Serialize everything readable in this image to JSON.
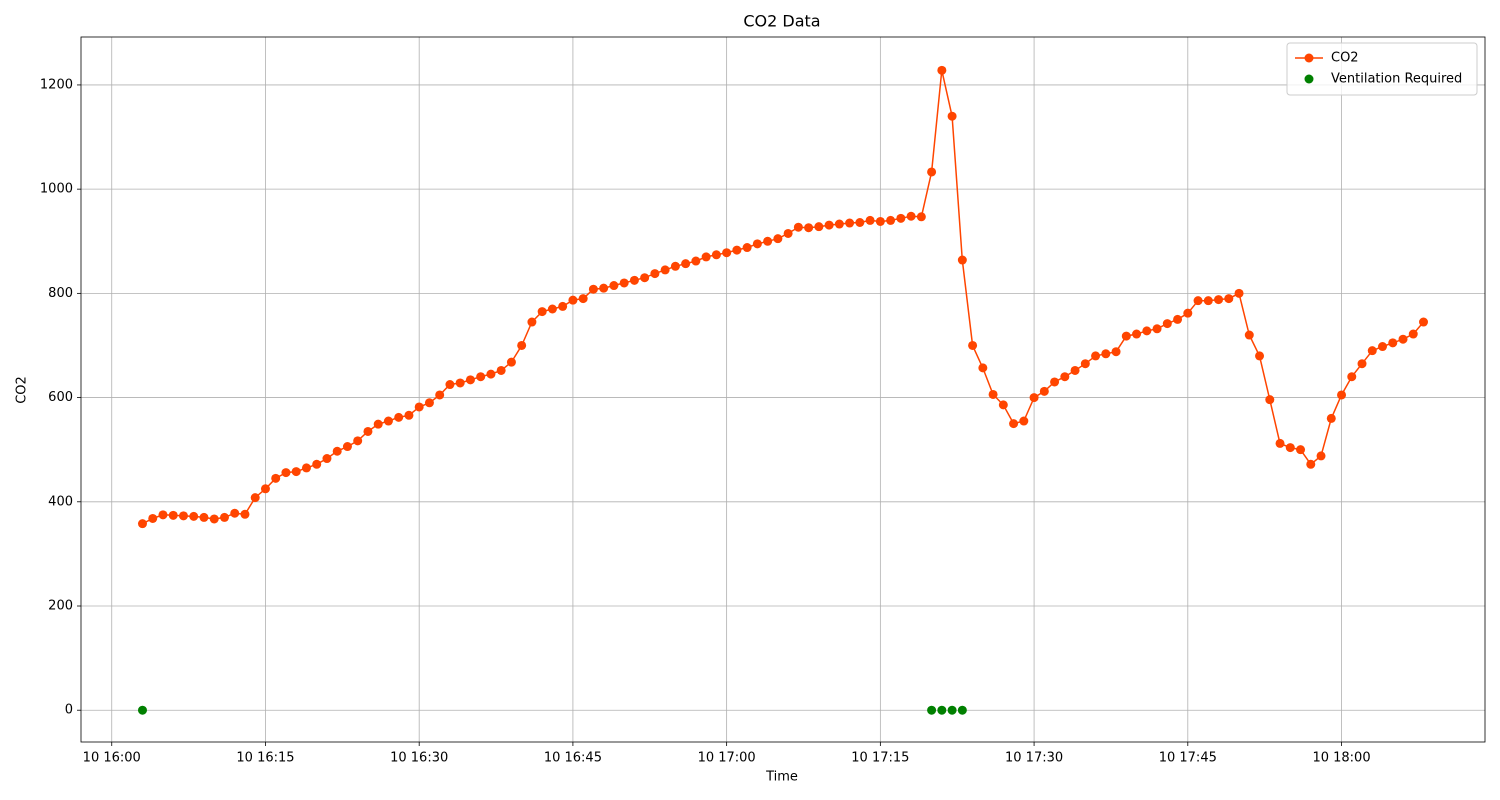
{
  "chart_data": {
    "type": "line",
    "title": "CO2 Data",
    "x_label": "Time",
    "y_label": "CO2",
    "x": [
      "10 16:03",
      "10 16:04",
      "10 16:05",
      "10 16:06",
      "10 16:07",
      "10 16:08",
      "10 16:09",
      "10 16:10",
      "10 16:11",
      "10 16:12",
      "10 16:13",
      "10 16:14",
      "10 16:15",
      "10 16:16",
      "10 16:17",
      "10 16:18",
      "10 16:19",
      "10 16:20",
      "10 16:21",
      "10 16:22",
      "10 16:23",
      "10 16:24",
      "10 16:25",
      "10 16:26",
      "10 16:27",
      "10 16:28",
      "10 16:29",
      "10 16:30",
      "10 16:31",
      "10 16:32",
      "10 16:33",
      "10 16:34",
      "10 16:35",
      "10 16:36",
      "10 16:37",
      "10 16:38",
      "10 16:39",
      "10 16:40",
      "10 16:41",
      "10 16:42",
      "10 16:43",
      "10 16:44",
      "10 16:45",
      "10 16:46",
      "10 16:47",
      "10 16:48",
      "10 16:49",
      "10 16:50",
      "10 16:51",
      "10 16:52",
      "10 16:53",
      "10 16:54",
      "10 16:55",
      "10 16:56",
      "10 16:57",
      "10 16:58",
      "10 16:59",
      "10 17:00",
      "10 17:01",
      "10 17:02",
      "10 17:03",
      "10 17:04",
      "10 17:05",
      "10 17:06",
      "10 17:07",
      "10 17:08",
      "10 17:09",
      "10 17:10",
      "10 17:11",
      "10 17:12",
      "10 17:13",
      "10 17:14",
      "10 17:15",
      "10 17:16",
      "10 17:17",
      "10 17:18",
      "10 17:19",
      "10 17:20",
      "10 17:21",
      "10 17:22",
      "10 17:23",
      "10 17:24",
      "10 17:25",
      "10 17:26",
      "10 17:27",
      "10 17:28",
      "10 17:29",
      "10 17:30",
      "10 17:31",
      "10 17:32",
      "10 17:33",
      "10 17:34",
      "10 17:35",
      "10 17:36",
      "10 17:37",
      "10 17:38",
      "10 17:39",
      "10 17:40",
      "10 17:41",
      "10 17:42",
      "10 17:43",
      "10 17:44",
      "10 17:45",
      "10 17:46",
      "10 17:47",
      "10 17:48",
      "10 17:49",
      "10 17:50",
      "10 17:51",
      "10 17:52",
      "10 17:53",
      "10 17:54",
      "10 17:55",
      "10 17:56",
      "10 17:57",
      "10 17:58",
      "10 17:59",
      "10 18:00",
      "10 18:01",
      "10 18:02",
      "10 18:03",
      "10 18:04",
      "10 18:05",
      "10 18:06",
      "10 18:07",
      "10 18:08"
    ],
    "series": [
      {
        "name": "CO2",
        "color": "#ff4500",
        "values": [
          358,
          368,
          375,
          374,
          373,
          372,
          370,
          367,
          370,
          378,
          376,
          408,
          425,
          445,
          456,
          458,
          465,
          472,
          483,
          497,
          506,
          517,
          535,
          549,
          555,
          562,
          566,
          582,
          590,
          605,
          625,
          628,
          634,
          640,
          645,
          652,
          668,
          700,
          745,
          765,
          770,
          775,
          787,
          790,
          808,
          810,
          815,
          820,
          825,
          830,
          838,
          845,
          852,
          857,
          862,
          870,
          874,
          878,
          883,
          888,
          895,
          900,
          905,
          915,
          927,
          926,
          928,
          931,
          933,
          935,
          936,
          940,
          938,
          940,
          944,
          948,
          947,
          1033,
          1228,
          1140,
          864,
          700,
          657,
          606,
          586,
          550,
          555,
          600,
          612,
          630,
          640,
          652,
          665,
          680,
          684,
          688,
          718,
          722,
          728,
          732,
          742,
          750,
          762,
          786,
          786,
          788,
          790,
          800,
          720,
          680,
          596,
          512,
          504,
          500,
          472,
          488,
          560,
          605,
          640,
          665,
          690,
          698,
          705,
          712,
          722,
          745
        ]
      }
    ],
    "scatter": {
      "name": "Ventilation Required",
      "color": "#008000",
      "x": [
        "10 16:03",
        "10 17:20",
        "10 17:21",
        "10 17:22",
        "10 17:23"
      ],
      "values": [
        0,
        0,
        0,
        0,
        0
      ]
    },
    "xlim": [
      "10 15:57",
      "10 18:14"
    ],
    "xticks": [
      "10 16:00",
      "10 16:15",
      "10 16:30",
      "10 16:45",
      "10 17:00",
      "10 17:15",
      "10 17:30",
      "10 17:45",
      "10 18:00"
    ],
    "ylim": [
      -61,
      1292
    ],
    "yticks": [
      0,
      200,
      400,
      600,
      800,
      1000,
      1200
    ],
    "grid": true,
    "legend": "upper right"
  }
}
